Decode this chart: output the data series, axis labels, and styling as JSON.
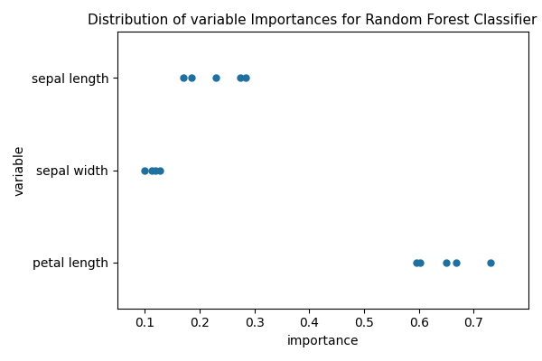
{
  "title": "Distribution of variable Importances for Random Forest Classifier ac",
  "xlabel": "importance",
  "ylabel": "variable",
  "categories": [
    "sepal length",
    "sepal width",
    "petal length"
  ],
  "ytick_positions": [
    2,
    1,
    0
  ],
  "points": {
    "sepal length": [
      0.17,
      0.185,
      0.23,
      0.275,
      0.285
    ],
    "sepal width": [
      0.1,
      0.113,
      0.12,
      0.128
    ],
    "petal length": [
      0.595,
      0.603,
      0.65,
      0.668,
      0.73
    ]
  },
  "dot_color": "#1f6f9f",
  "dot_size": 25,
  "xlim": [
    0.05,
    0.8
  ],
  "ylim": [
    -0.5,
    2.5
  ],
  "xticks": [
    0.1,
    0.2,
    0.3,
    0.4,
    0.5,
    0.6,
    0.7
  ],
  "figsize": [
    6.0,
    4.0
  ],
  "dpi": 100,
  "title_fontsize": 11,
  "label_fontsize": 10
}
